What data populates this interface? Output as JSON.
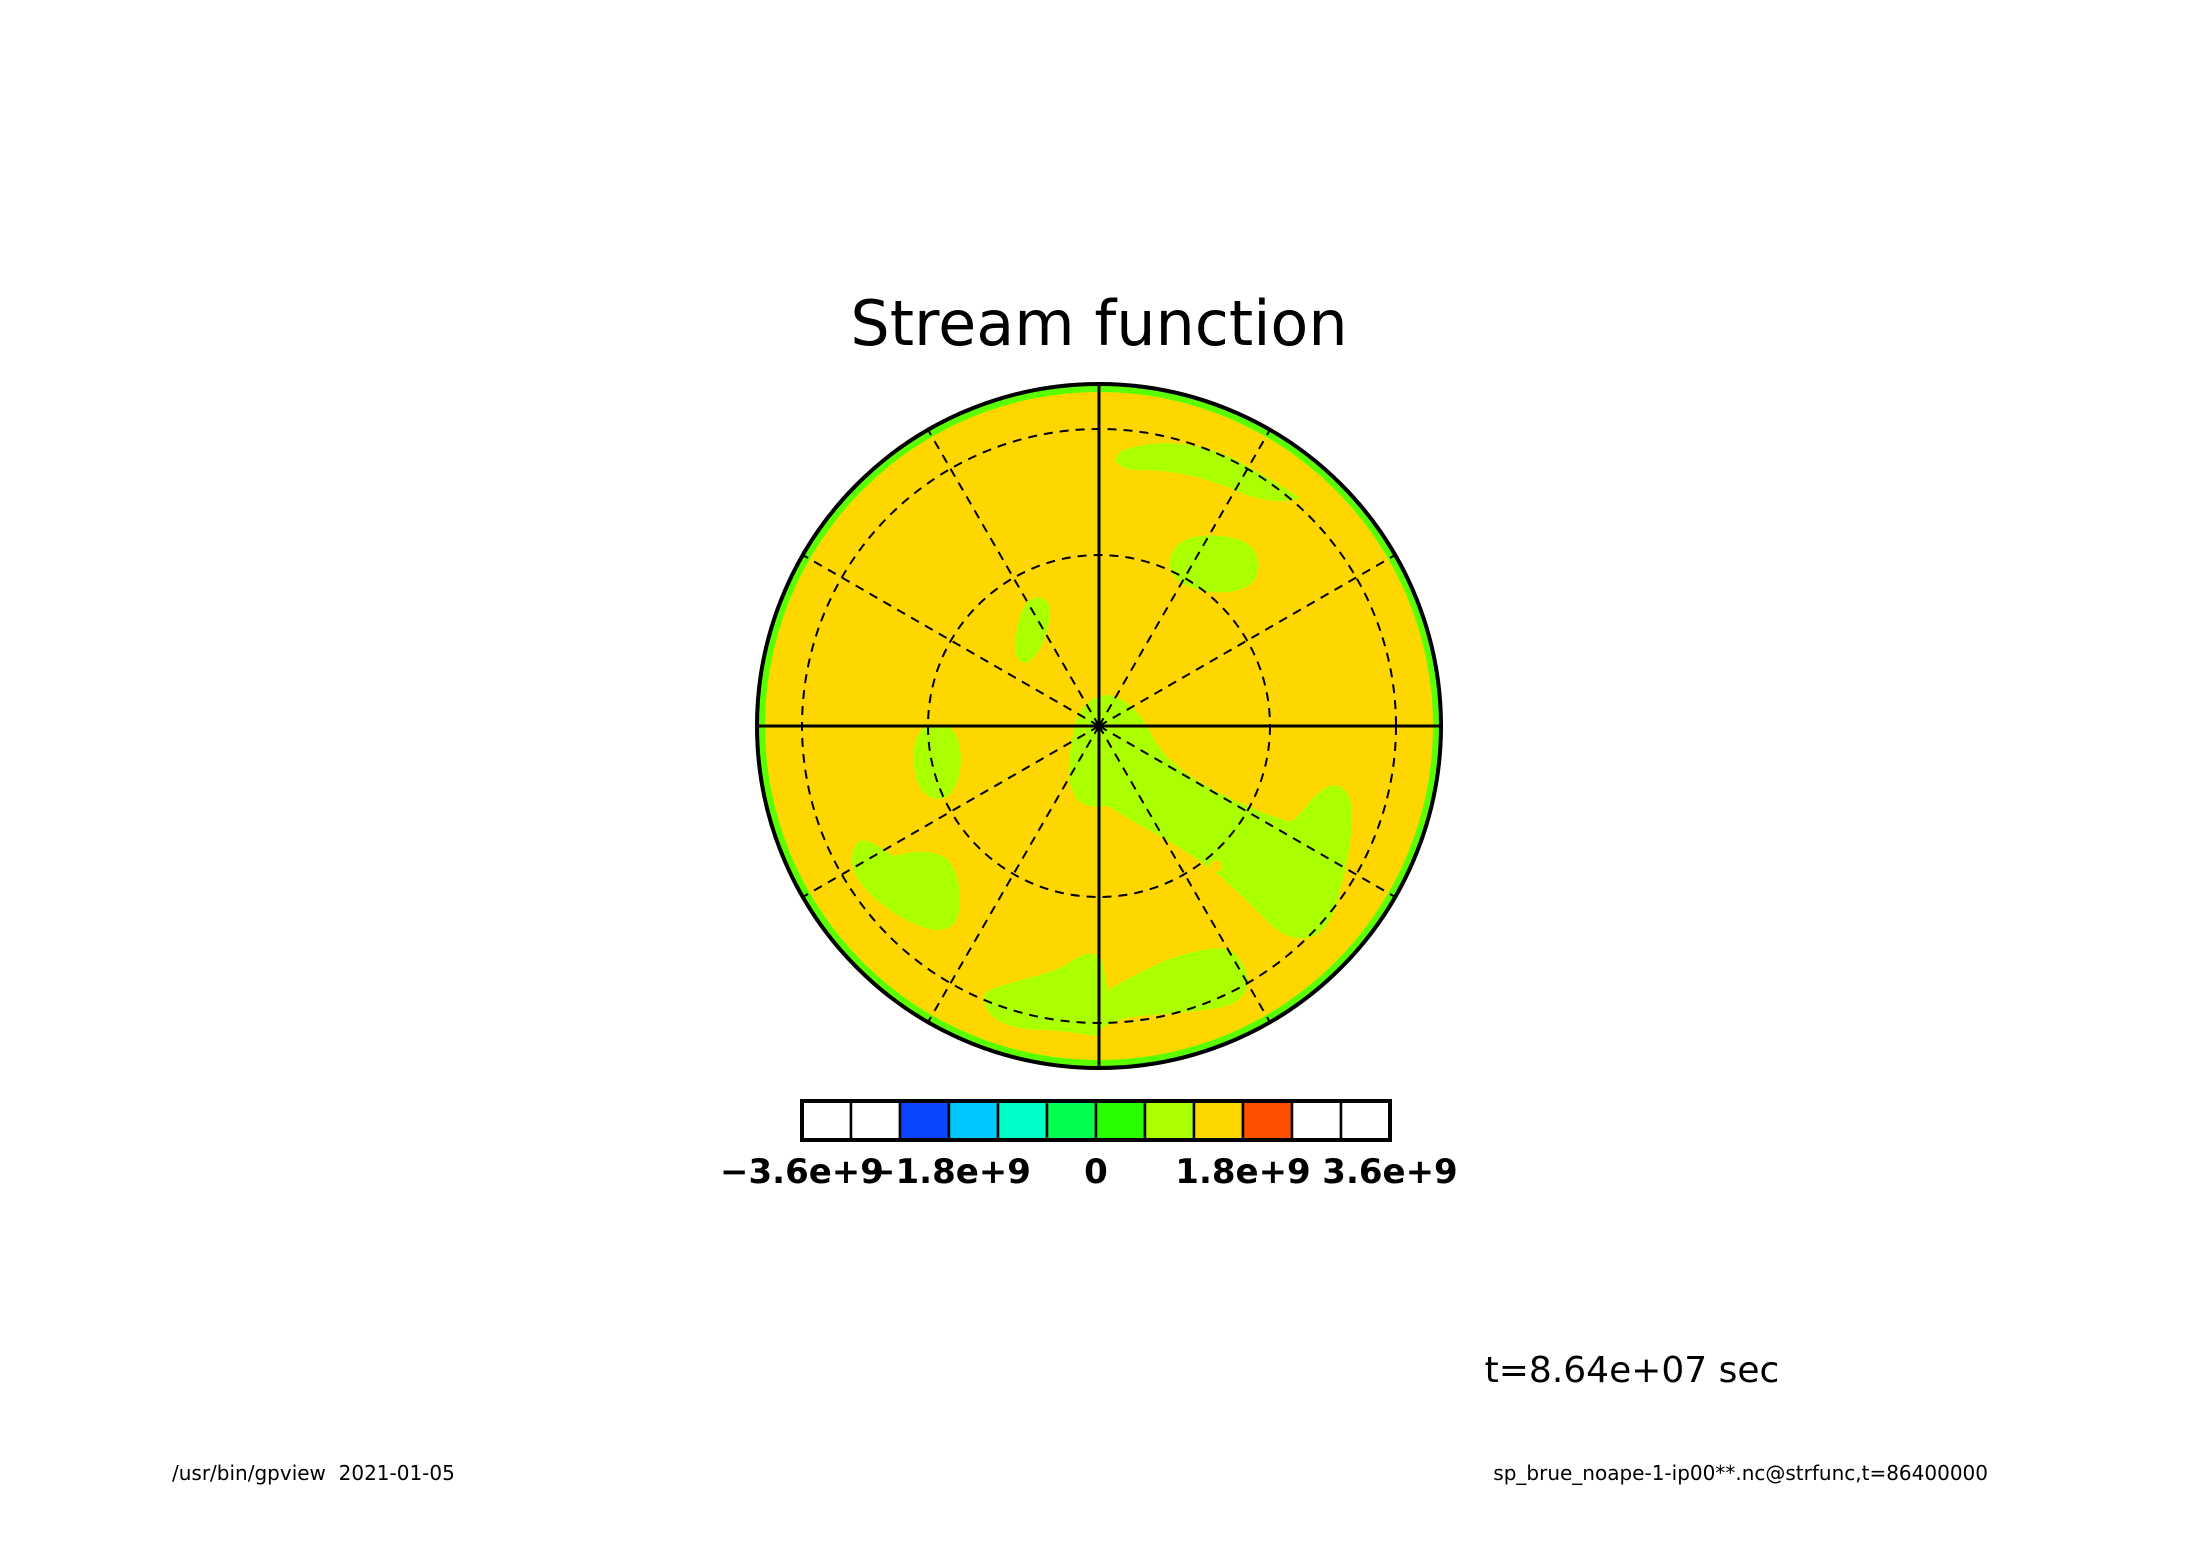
{
  "chart_data": {
    "type": "heatmap",
    "projection": "polar-stereographic",
    "title": "Stream function",
    "time_label": "t=8.64e+07 sec",
    "colorbar": {
      "tick_labels": [
        "-3.6e+9",
        "-1.8e+9",
        "0",
        "1.8e+9",
        "3.6e+9"
      ],
      "tick_values": [
        -3600000000,
        -1800000000,
        0,
        1800000000,
        3600000000
      ],
      "levels": [
        -3600000000,
        -3000000000,
        -2400000000,
        -1800000000,
        -1200000000,
        -600000000,
        0,
        600000000,
        1200000000,
        1800000000,
        2400000000,
        3000000000,
        3600000000
      ],
      "colors": [
        "#ffffff",
        "#ffffff",
        "#0a46ff",
        "#00c8ff",
        "#00ffc8",
        "#00ff50",
        "#28ff00",
        "#aaff00",
        "#ffd700",
        "#ff5000",
        "#ffffff",
        "#ffffff"
      ]
    },
    "field_colors": {
      "background": "#ffd700",
      "green_regions": "#aaff00",
      "rim": "#5aff00"
    },
    "grid": {
      "latitude_circles": "dashed",
      "meridians": "dashed, every 30 degrees",
      "axes": "solid cross"
    },
    "footer_left": "/usr/bin/gpview  2021-01-05",
    "footer_right": "sp_brue_noape-1-ip00**.nc@strfunc,t=86400000"
  }
}
